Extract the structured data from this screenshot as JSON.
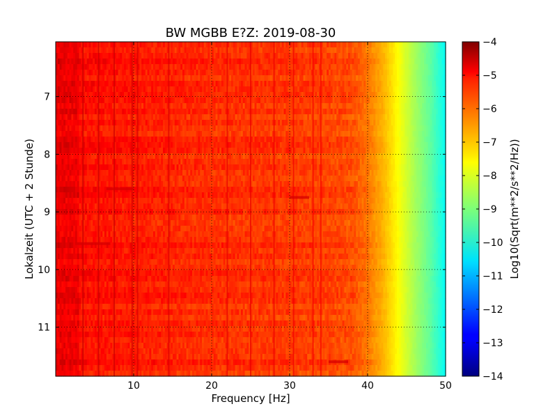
{
  "chart_data": {
    "type": "heatmap",
    "title": "BW MGBB E?Z: 2019-08-30",
    "xlabel": "Frequency [Hz]",
    "ylabel": "Lokalzeit (UTC + 2 Stunde)",
    "xlim": [
      0,
      50
    ],
    "ylim": [
      11.85,
      6.05
    ],
    "x_ticks": [
      "10",
      "20",
      "30",
      "40",
      "50"
    ],
    "x_tick_values": [
      10,
      20,
      30,
      40,
      50
    ],
    "y_ticks": [
      "7",
      "8",
      "9",
      "10",
      "11"
    ],
    "y_tick_values": [
      7,
      8,
      9,
      10,
      11
    ],
    "grid": true,
    "colorscale": "jet",
    "colorbar": {
      "label": "Log10(Sqrt(m**2/s**2/Hz))",
      "range": [
        -14,
        -4
      ],
      "ticks": [
        "−4",
        "−5",
        "−6",
        "−7",
        "−8",
        "−9",
        "−10",
        "−11",
        "−12",
        "−13",
        "−14"
      ],
      "tick_values": [
        -4,
        -5,
        -6,
        -7,
        -8,
        -9,
        -10,
        -11,
        -12,
        -13,
        -14
      ]
    },
    "spectral_profile": {
      "frequency_hz": [
        0,
        5,
        10,
        15,
        20,
        25,
        30,
        35,
        38,
        40,
        42,
        44,
        46,
        48,
        50
      ],
      "level": [
        -5.3,
        -5.4,
        -5.5,
        -5.6,
        -5.7,
        -5.75,
        -5.8,
        -5.9,
        -6.0,
        -6.4,
        -7.0,
        -7.8,
        -8.6,
        -9.3,
        -10.2
      ]
    },
    "line_frequencies_hz": [
      3.5,
      5.5,
      7.5,
      9.8,
      10.5,
      14.5,
      22.0,
      25.0,
      28.0,
      30.5,
      33.0,
      34.0
    ]
  }
}
